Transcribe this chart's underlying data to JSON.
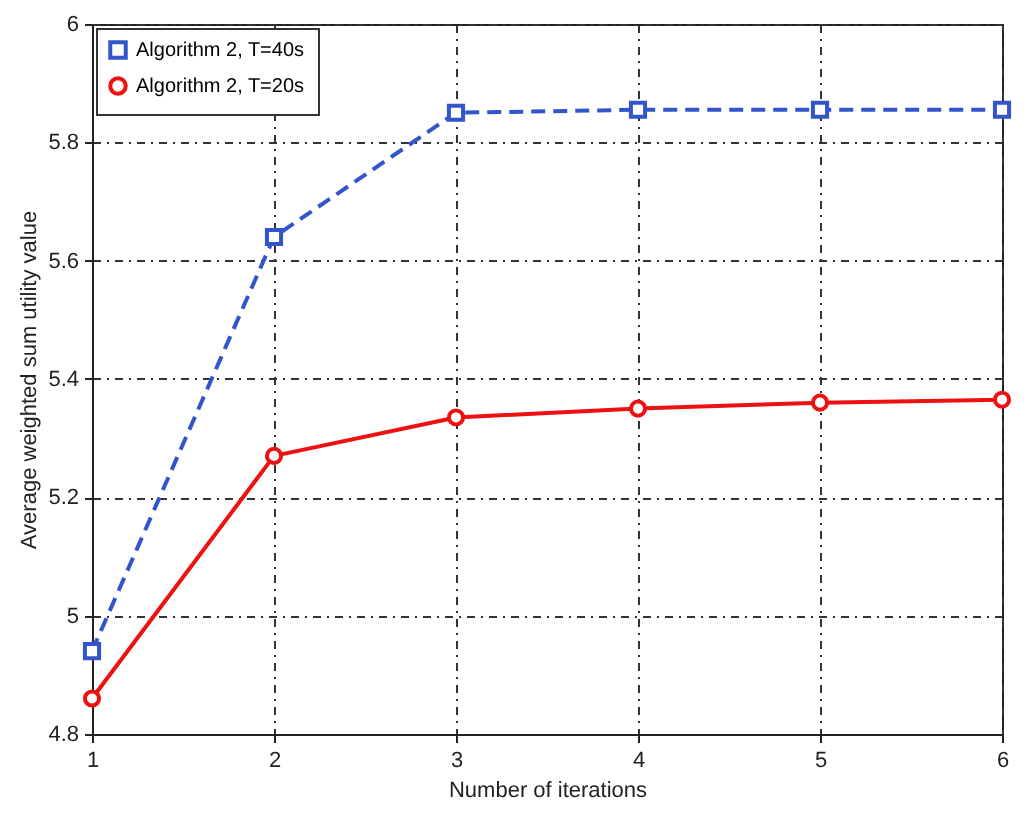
{
  "chart_data": {
    "type": "line",
    "xlabel": "Number of  iterations",
    "ylabel": "Average weighted sum utility value",
    "x": [
      1,
      2,
      3,
      4,
      5,
      6
    ],
    "series": [
      {
        "name": "Algorithm 2, T=40s",
        "color": "#3355cc",
        "marker": "square",
        "line_style": "dashed",
        "values": [
          4.94,
          5.64,
          5.85,
          5.855,
          5.855,
          5.855
        ]
      },
      {
        "name": "Algorithm 2, T=20s",
        "color": "#ee1111",
        "marker": "circle",
        "line_style": "solid",
        "values": [
          4.86,
          5.27,
          5.335,
          5.35,
          5.36,
          5.365
        ]
      }
    ],
    "xlim": [
      1,
      6
    ],
    "xticks": [
      1,
      2,
      3,
      4,
      5,
      6
    ],
    "ylim": [
      4.8,
      6
    ],
    "yticks": [
      4.8,
      5,
      5.2,
      5.4,
      5.6,
      5.8,
      6
    ],
    "grid": true,
    "legend": "top left"
  }
}
